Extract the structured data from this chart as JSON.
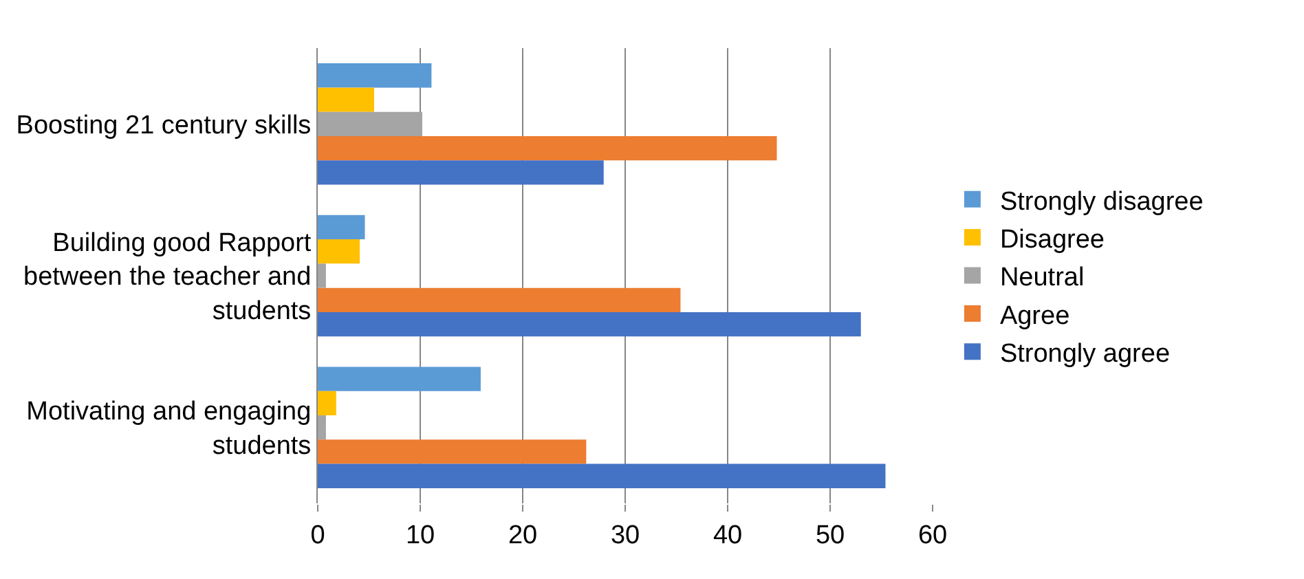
{
  "chart_data": {
    "type": "bar",
    "orientation": "horizontal",
    "categories": [
      "Boosting 21 century skills",
      "Building good Rapport between the teacher and students",
      "Motivating and engaging students"
    ],
    "series": [
      {
        "name": "Strongly disagree",
        "color": "#5b9bd5",
        "values": [
          11.1,
          4.6,
          15.9
        ]
      },
      {
        "name": "Disagree",
        "color": "#ffc000",
        "values": [
          5.5,
          4.1,
          1.8
        ]
      },
      {
        "name": "Neutral",
        "color": "#a5a5a5",
        "values": [
          10.2,
          0.8,
          0.8
        ]
      },
      {
        "name": "Agree",
        "color": "#ed7d31",
        "values": [
          44.8,
          35.4,
          26.2
        ]
      },
      {
        "name": "Strongly agree",
        "color": "#4472c4",
        "values": [
          27.9,
          53,
          55.4
        ]
      }
    ],
    "xlim": [
      0,
      60
    ],
    "xticks": [
      0,
      10,
      20,
      30,
      40,
      50,
      60
    ],
    "grid": "x",
    "legend": "right"
  }
}
